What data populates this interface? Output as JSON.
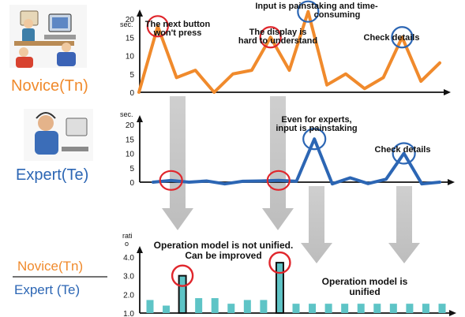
{
  "labels": {
    "novice": "Novice(Tn)",
    "expert": "Expert(Te)",
    "ratio_top": "Novice(Tn)",
    "ratio_bottom": "Expert (Te)"
  },
  "colors": {
    "novice": "#f08a2c",
    "expert": "#2c66b4",
    "arrow": "#cfcfcf",
    "highlight_red": "#e0262c",
    "highlight_blue": "#2c66b4",
    "bar_fill": "#5ec4c6"
  },
  "icons": [
    "novice-user-at-computer-icon",
    "expert-user-with-headset-icon"
  ],
  "chart_data": [
    {
      "type": "line",
      "series": [
        {
          "name": "Novice(Tn)",
          "values": [
            0,
            18,
            4,
            6,
            0,
            5,
            6,
            15,
            6,
            22,
            2,
            5,
            1,
            4,
            15,
            3,
            8
          ]
        }
      ],
      "x": [
        0,
        1,
        2,
        3,
        4,
        5,
        6,
        7,
        8,
        9,
        10,
        11,
        12,
        13,
        14,
        15,
        16
      ],
      "ylabel": "sec.",
      "yticks": [
        "0",
        "5",
        "10",
        "15",
        "20"
      ],
      "ylim": [
        0,
        24
      ],
      "annotations": [
        {
          "x": 1,
          "text": "The next button won't press",
          "mark": "red"
        },
        {
          "x": 7,
          "text": "The display is hard to understand",
          "mark": "red"
        },
        {
          "x": 9,
          "text": "Input is painstaking and time-consuming",
          "mark": "blue"
        },
        {
          "x": 14,
          "text": "Check details",
          "mark": "blue"
        }
      ]
    },
    {
      "type": "line",
      "series": [
        {
          "name": "Expert(Te)",
          "values": [
            0,
            0.6,
            0,
            0.4,
            -0.6,
            0.3,
            0.4,
            0.6,
            0.3,
            15,
            -0.6,
            1.5,
            -0.5,
            1.0,
            10,
            -0.6,
            0
          ]
        }
      ],
      "x": [
        0,
        1,
        2,
        3,
        4,
        5,
        6,
        7,
        8,
        9,
        10,
        11,
        12,
        13,
        14,
        15,
        16
      ],
      "ylabel": "sec.",
      "yticks": [
        "0",
        "5",
        "10",
        "15",
        "20"
      ],
      "ylim": [
        -2,
        24
      ],
      "annotations": [
        {
          "x": 9,
          "text": "Even for experts, input is painstaking",
          "mark": "blue"
        },
        {
          "x": 14,
          "text": "Check details",
          "mark": "blue"
        }
      ]
    },
    {
      "type": "bar",
      "ylabel": "ratio",
      "yticks": [
        "1.0",
        "2.0",
        "3.0",
        "4.0"
      ],
      "ylim": [
        1.0,
        4.4
      ],
      "values": [
        1.7,
        1.4,
        3.0,
        1.8,
        1.8,
        1.5,
        1.7,
        1.7,
        3.7,
        1.5,
        1.5,
        1.5,
        1.5,
        1.5,
        1.5,
        1.5,
        1.5,
        1.5,
        1.5
      ],
      "highlighted_bars": [
        2,
        8
      ],
      "annotations": [
        {
          "text": "Operation model is not unified. Can be improved",
          "mark": "red"
        },
        {
          "text": "Operation model is unified"
        }
      ]
    }
  ]
}
